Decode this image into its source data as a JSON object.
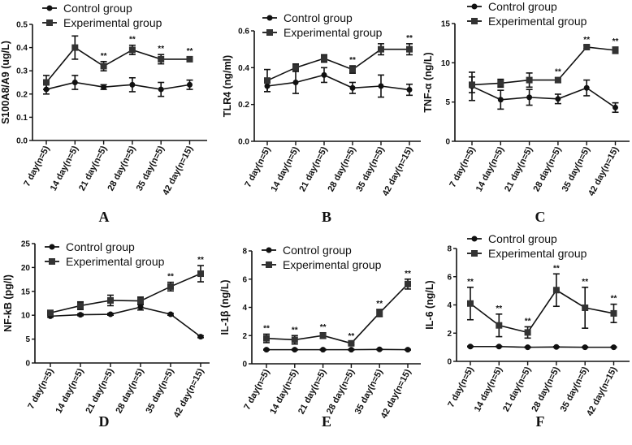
{
  "chart_data": [
    {
      "type": "line",
      "panel_letter": "A",
      "ylabel": "S100A8/A9 (ug/L)",
      "ylim": [
        0,
        0.5
      ],
      "yticks": [
        "0.0",
        "0.1",
        "0.2",
        "0.3",
        "0.4",
        "0.5"
      ],
      "ytick_values": [
        0,
        0.1,
        0.2,
        0.3,
        0.4,
        0.5
      ],
      "categories": [
        "7 day(n=5)",
        "14 day(n=5)",
        "21 day(n=5)",
        "28 day(n=5)",
        "35 day(n=5)",
        "42 day(n=15)"
      ],
      "series": [
        {
          "name": "Control group",
          "marker": "circle",
          "values": [
            0.22,
            0.25,
            0.23,
            0.24,
            0.22,
            0.24
          ],
          "errors": [
            0.02,
            0.03,
            0.01,
            0.03,
            0.03,
            0.02
          ]
        },
        {
          "name": "Experimental group",
          "marker": "square",
          "values": [
            0.25,
            0.4,
            0.32,
            0.39,
            0.35,
            0.35
          ],
          "errors": [
            0.03,
            0.05,
            0.02,
            0.02,
            0.02,
            0.01
          ]
        }
      ],
      "significance": [
        "",
        "",
        "**",
        "**",
        "**",
        "**"
      ]
    },
    {
      "type": "line",
      "panel_letter": "B",
      "ylabel": "TLR4 (ng/ml)",
      "ylim": [
        0,
        0.6
      ],
      "yticks": [
        "0.0",
        "0.2",
        "0.4",
        "0.6"
      ],
      "ytick_values": [
        0,
        0.2,
        0.4,
        0.6
      ],
      "categories": [
        "7 day(n=5)",
        "14 day(n=5)",
        "21 day(n=5)",
        "28 day(n=5)",
        "35 day(n=5)",
        "42 day(n=15)"
      ],
      "series": [
        {
          "name": "Control group",
          "marker": "circle",
          "values": [
            0.3,
            0.32,
            0.36,
            0.29,
            0.3,
            0.28
          ],
          "errors": [
            0.03,
            0.06,
            0.04,
            0.03,
            0.06,
            0.03
          ]
        },
        {
          "name": "Experimental group",
          "marker": "square",
          "values": [
            0.33,
            0.4,
            0.45,
            0.39,
            0.5,
            0.5
          ],
          "errors": [
            0.06,
            0.02,
            0.02,
            0.02,
            0.03,
            0.03
          ]
        }
      ],
      "significance": [
        "",
        "",
        "",
        "**",
        "",
        "**"
      ]
    },
    {
      "type": "line",
      "panel_letter": "C",
      "ylabel": "TNF-α (ng/L)",
      "ylim": [
        0,
        15
      ],
      "yticks": [
        "0",
        "5",
        "10",
        "15"
      ],
      "ytick_values": [
        0,
        5,
        10,
        15
      ],
      "categories": [
        "7 day(n=5)",
        "14 day(n=5)",
        "21 day(n=5)",
        "28 day(n=5)",
        "35 day(n=5)",
        "42 day(n=15)"
      ],
      "series": [
        {
          "name": "Control group",
          "marker": "circle",
          "values": [
            7.0,
            5.3,
            5.6,
            5.4,
            6.8,
            4.3
          ],
          "errors": [
            1.8,
            1.2,
            1.0,
            0.6,
            1.0,
            0.6
          ]
        },
        {
          "name": "Experimental group",
          "marker": "square",
          "values": [
            7.2,
            7.4,
            7.8,
            7.8,
            12.0,
            11.6
          ],
          "errors": [
            1.0,
            0.5,
            0.9,
            0.3,
            0.2,
            0.4
          ]
        }
      ],
      "significance": [
        "",
        "",
        "",
        "**",
        "**",
        "**"
      ]
    },
    {
      "type": "line",
      "panel_letter": "D",
      "ylabel": "NF-kB (pg/l)",
      "ylim": [
        0,
        25
      ],
      "yticks": [
        "0",
        "5",
        "10",
        "15",
        "20",
        "25"
      ],
      "ytick_values": [
        0,
        5,
        10,
        15,
        20,
        25
      ],
      "categories": [
        "7 day(n=5)",
        "14 day(n=5)",
        "21 day(n=5)",
        "28 day(n=5)",
        "35 day(n=5)",
        "42 day(n=15)"
      ],
      "series": [
        {
          "name": "Control group",
          "marker": "circle",
          "values": [
            9.8,
            10.1,
            10.2,
            11.7,
            10.2,
            5.5
          ],
          "errors": [
            0.2,
            0.2,
            0.2,
            0.6,
            0.2,
            0.2
          ]
        },
        {
          "name": "Experimental group",
          "marker": "square",
          "values": [
            10.5,
            12.0,
            13.1,
            13.0,
            16.0,
            18.7
          ],
          "errors": [
            0.4,
            0.8,
            1.1,
            0.8,
            0.9,
            1.7
          ]
        }
      ],
      "significance": [
        "",
        "",
        "",
        "",
        "**",
        "**"
      ]
    },
    {
      "type": "line",
      "panel_letter": "E",
      "ylabel": "IL-1β (ng/L)",
      "ylim": [
        0,
        8
      ],
      "yticks": [
        "0",
        "2",
        "4",
        "6",
        "8"
      ],
      "ytick_values": [
        0,
        2,
        4,
        6,
        8
      ],
      "categories": [
        "7 day(n=5)",
        "14 day(n=5)",
        "21 day(n=5)",
        "28 day(n=5)",
        "35 day(n=5)",
        "42 day(n=15)"
      ],
      "series": [
        {
          "name": "Control group",
          "marker": "circle",
          "values": [
            1.0,
            1.0,
            1.0,
            1.0,
            1.02,
            1.0
          ],
          "errors": [
            0.03,
            0.03,
            0.03,
            0.03,
            0.03,
            0.03
          ]
        },
        {
          "name": "Experimental group",
          "marker": "square",
          "values": [
            1.8,
            1.7,
            2.0,
            1.45,
            3.6,
            5.65
          ],
          "errors": [
            0.3,
            0.3,
            0.2,
            0.1,
            0.25,
            0.35
          ]
        }
      ],
      "significance": [
        "**",
        "**",
        "**",
        "**",
        "**",
        "**"
      ]
    },
    {
      "type": "line",
      "panel_letter": "F",
      "ylabel": "IL-6 (ng/L)",
      "ylim": [
        0,
        8
      ],
      "yticks": [
        "0",
        "2",
        "4",
        "6",
        "8"
      ],
      "ytick_values": [
        0,
        2,
        4,
        6,
        8
      ],
      "categories": [
        "7 day(n=5)",
        "14 day(n=5)",
        "21 day(n=5)",
        "28 day(n=5)",
        "35 day(n=5)",
        "42 day(n=15)"
      ],
      "series": [
        {
          "name": "Control group",
          "marker": "circle",
          "values": [
            1.05,
            1.05,
            1.0,
            1.02,
            1.0,
            1.0
          ],
          "errors": [
            0.03,
            0.03,
            0.03,
            0.03,
            0.03,
            0.03
          ]
        },
        {
          "name": "Experimental group",
          "marker": "square",
          "values": [
            4.1,
            2.55,
            2.05,
            5.05,
            3.8,
            3.4
          ],
          "errors": [
            1.15,
            0.8,
            0.4,
            1.15,
            1.45,
            0.65
          ]
        }
      ],
      "significance": [
        "**",
        "**",
        "**",
        "**",
        "**",
        "**"
      ]
    }
  ],
  "colors": {
    "line": "#111111",
    "experimental_marker": "#333333"
  }
}
